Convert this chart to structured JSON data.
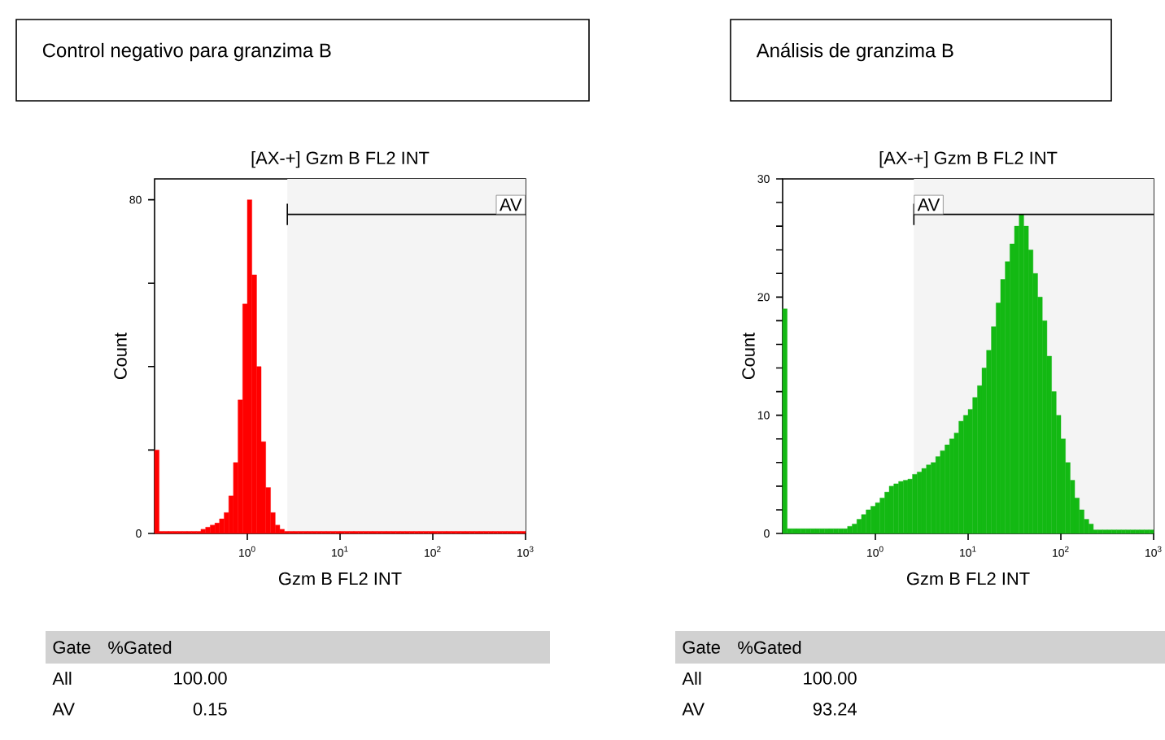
{
  "chart_data": [
    {
      "type": "histogram",
      "title": "Control negativo para granzima B",
      "subtitle": "[AX-+] Gzm B FL2 INT",
      "xlabel": "Gzm B FL2 INT",
      "ylabel": "Count",
      "log": "x",
      "color": "#ff0000",
      "bins": [
        0.1,
        0.112,
        0.126,
        0.141,
        0.158,
        0.178,
        0.2,
        0.224,
        0.251,
        0.282,
        0.316,
        0.355,
        0.398,
        0.447,
        0.501,
        0.562,
        0.631,
        0.708,
        0.794,
        0.891,
        1,
        1.12,
        1.26,
        1.41,
        1.58,
        1.78,
        2,
        2.24,
        2.51,
        2.82,
        3.16,
        3.55,
        3.98,
        4.47,
        5.01,
        5.62,
        6.31,
        7.08,
        7.94,
        8.91,
        10,
        11.2,
        12.6,
        14.1,
        15.8,
        17.8,
        20,
        22.4,
        25.1,
        28.2,
        31.6,
        35.5,
        39.8,
        44.7,
        50.1,
        56.2,
        63.1,
        70.8,
        79.4,
        89.1,
        100,
        112,
        126,
        141,
        158,
        178,
        200,
        224,
        251,
        282,
        316,
        355,
        398,
        447,
        501,
        562,
        631,
        708,
        794,
        891,
        1000
      ],
      "values": [
        20,
        0.5,
        0.5,
        0.5,
        0.5,
        0.5,
        0.5,
        0.5,
        0.5,
        0.5,
        1,
        1.5,
        2,
        2.5,
        3.5,
        5,
        9,
        17,
        32,
        55,
        80,
        62,
        40,
        22,
        11,
        5,
        2,
        1,
        0.5,
        0.5,
        0.5,
        0.5,
        0.5,
        0.5,
        0.5,
        0.5,
        0.5,
        0.5,
        0.5,
        0.5,
        0.5,
        0.5,
        0.5,
        0.5,
        0.5,
        0.5,
        0.5,
        0.5,
        0.5,
        0.5,
        0.5,
        0.5,
        0.5,
        0.5,
        0.5,
        0.5,
        0.5,
        0.5,
        0.5,
        0.5,
        0.5,
        0.5,
        0.5,
        0.5,
        0.5,
        0.5,
        0.5,
        0.5,
        0.5,
        0.5,
        0.5,
        0.5,
        0.5,
        0.5,
        0.5,
        0.5,
        0.5,
        0.5,
        0.5,
        0.5
      ],
      "xlim": [
        0.1,
        1000
      ],
      "ylim": [
        0,
        85
      ],
      "xticks": [
        {
          "value": 1,
          "label": "10$^{0}$"
        },
        {
          "value": 10,
          "label": "10$^{1}$"
        },
        {
          "value": 100,
          "label": "10$^{2}$"
        },
        {
          "value": 1000,
          "label": "10$^{3}$"
        }
      ],
      "yticks": [
        0,
        {
          "value": 20,
          "label": null
        },
        {
          "value": 40,
          "label": null
        },
        {
          "value": 60,
          "label": null
        },
        80
      ],
      "bands": [
        {
          "axis": "x",
          "from": 2.7,
          "to": 1000,
          "label": "AV",
          "color": "#f4f4f4"
        }
      ],
      "annotations": [
        "Gate",
        "%Gated",
        "All",
        "100.00",
        "AV",
        "0.15"
      ]
    },
    {
      "type": "histogram",
      "title": "Análisis de granzima B",
      "subtitle": "[AX-+] Gzm B FL2 INT",
      "xlabel": "Gzm B FL2 INT",
      "ylabel": "Count",
      "log": "x",
      "color": "#13b913",
      "bins": [
        0.1,
        0.112,
        0.126,
        0.141,
        0.158,
        0.178,
        0.2,
        0.224,
        0.251,
        0.282,
        0.316,
        0.355,
        0.398,
        0.447,
        0.501,
        0.562,
        0.631,
        0.708,
        0.794,
        0.891,
        1,
        1.12,
        1.26,
        1.41,
        1.58,
        1.78,
        2,
        2.24,
        2.51,
        2.82,
        3.16,
        3.55,
        3.98,
        4.47,
        5.01,
        5.62,
        6.31,
        7.08,
        7.94,
        8.91,
        10,
        11.2,
        12.6,
        14.1,
        15.8,
        17.8,
        20,
        22.4,
        25.1,
        28.2,
        31.6,
        35.5,
        39.8,
        44.7,
        50.1,
        56.2,
        63.1,
        70.8,
        79.4,
        89.1,
        100,
        112,
        126,
        141,
        158,
        178,
        200,
        224,
        251,
        282,
        316,
        355,
        398,
        447,
        501,
        562,
        631,
        708,
        794,
        891,
        1000
      ],
      "values": [
        19,
        0.4,
        0.4,
        0.4,
        0.4,
        0.4,
        0.4,
        0.4,
        0.4,
        0.4,
        0.4,
        0.4,
        0.4,
        0.4,
        0.6,
        0.8,
        1.2,
        1.6,
        2,
        2.3,
        2.6,
        3,
        3.5,
        4,
        4.2,
        4.4,
        4.5,
        4.6,
        5,
        5.2,
        5.5,
        5.8,
        6,
        6.5,
        7,
        7.5,
        8,
        8.5,
        9.5,
        10,
        10.5,
        11.5,
        12.5,
        14,
        15.5,
        17.5,
        19.5,
        21.5,
        23,
        24.5,
        26,
        27,
        26,
        24,
        22,
        20,
        18,
        15,
        12,
        10,
        8,
        6,
        4.5,
        3,
        2,
        1.2,
        0.8,
        0.3,
        0.3,
        0.3,
        0.3,
        0.3,
        0.3,
        0.3,
        0.3,
        0.3,
        0.3,
        0.3,
        0.3,
        0.3
      ],
      "xlim": [
        0.1,
        1000
      ],
      "ylim": [
        0,
        30
      ],
      "xticks": [
        {
          "value": 1,
          "label": "10$^{0}$"
        },
        {
          "value": 10,
          "label": "10$^{1}$"
        },
        {
          "value": 100,
          "label": "10$^{2}$"
        },
        {
          "value": 1000,
          "label": "10$^{3}$"
        }
      ],
      "yticks": [
        0,
        {
          "value": 2,
          "label": null
        },
        {
          "value": 4,
          "label": null
        },
        {
          "value": 6,
          "label": null
        },
        {
          "value": 8,
          "label": null
        },
        10,
        {
          "value": 12,
          "label": null
        },
        {
          "value": 14,
          "label": null
        },
        {
          "value": 16,
          "label": null
        },
        {
          "value": 18,
          "label": null
        },
        20,
        {
          "value": 22,
          "label": null
        },
        {
          "value": 24,
          "label": null
        },
        {
          "value": 26,
          "label": null
        },
        {
          "value": 28,
          "label": null
        },
        30
      ],
      "bands": [
        {
          "axis": "x",
          "from": 2.6,
          "to": 1000,
          "label": "AV",
          "color": "#f4f4f4"
        }
      ],
      "annotations": [
        "Gate",
        "%Gated",
        "All",
        "100.00",
        "AV",
        "93.24"
      ]
    }
  ]
}
